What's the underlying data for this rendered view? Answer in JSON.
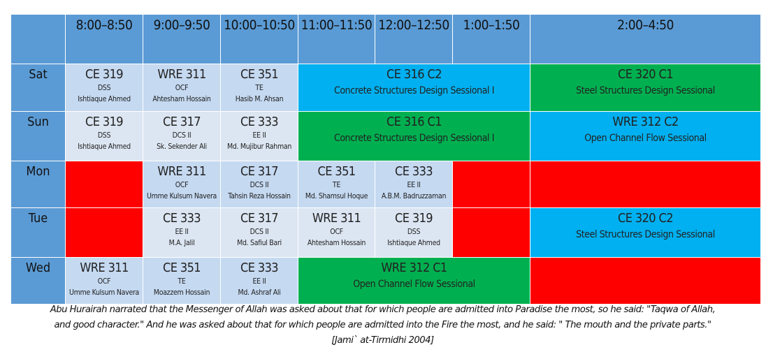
{
  "header": {
    "times": [
      "8:00–8:50",
      "9:00–9:50",
      "10:00–10:50",
      "11:00–11:50",
      "12:00–12:50",
      "1:00–1:50",
      "2:00–4:50"
    ]
  },
  "days": {
    "sat": "Sat",
    "sun": "Sun",
    "mon": "Mon",
    "tue": "Tue",
    "wed": "Wed"
  },
  "sat": {
    "c1": {
      "code": "CE 319",
      "abbr": "DSS",
      "teacher": "Ishtiaque Ahmed"
    },
    "c2": {
      "code": "WRE 311",
      "abbr": "OCF",
      "teacher": "Ahtesham Hossain"
    },
    "c3": {
      "code": "CE 351",
      "abbr": "TE",
      "teacher": "Hasib M. Ahsan"
    },
    "lab1": {
      "code": "CE 316 C2",
      "title": "Concrete Structures Design Sessional I"
    },
    "lab2": {
      "code": "CE 320 C1",
      "title": "Steel Structures Design Sessional"
    }
  },
  "sun": {
    "c1": {
      "code": "CE 319",
      "abbr": "DSS",
      "teacher": "Ishtiaque Ahmed"
    },
    "c2": {
      "code": "CE 317",
      "abbr": "DCS II",
      "teacher": "Sk. Sekender Ali"
    },
    "c3": {
      "code": "CE 333",
      "abbr": "EE II",
      "teacher": "Md. Mujibur Rahman"
    },
    "lab1": {
      "code": "CE 316 C1",
      "title": "Concrete Structures Design Sessional I"
    },
    "lab2": {
      "code": "WRE 312 C2",
      "title": "Open Channel Flow Sessional"
    }
  },
  "mon": {
    "c2": {
      "code": "WRE 311",
      "abbr": "OCF",
      "teacher": "Umme Kulsum Navera"
    },
    "c3": {
      "code": "CE 317",
      "abbr": "DCS II",
      "teacher": "Tahsin Reza Hossain"
    },
    "c4": {
      "code": "CE 351",
      "abbr": "TE",
      "teacher": "Md. Shamsul Hoque"
    },
    "c5": {
      "code": "CE 333",
      "abbr": "EE II",
      "teacher": "A.B.M. Badruzzaman"
    }
  },
  "tue": {
    "c2": {
      "code": "CE 333",
      "abbr": "EE II",
      "teacher": "M.A. Jalil"
    },
    "c3": {
      "code": "CE 317",
      "abbr": "DCS II",
      "teacher": "Md. Safiul Bari"
    },
    "c4": {
      "code": "WRE 311",
      "abbr": "OCF",
      "teacher": "Ahtesham Hossain"
    },
    "c5": {
      "code": "CE 319",
      "abbr": "DSS",
      "teacher": "Ishtiaque Ahmed"
    },
    "lab2": {
      "code": "CE 320 C2",
      "title": "Steel Structures Design Sessional"
    }
  },
  "wed": {
    "c1": {
      "code": "WRE 311",
      "abbr": "OCF",
      "teacher": "Umme Kulsum Navera"
    },
    "c2": {
      "code": "CE 351",
      "abbr": "TE",
      "teacher": "Moazzem Hossain"
    },
    "c3": {
      "code": "CE 333",
      "abbr": "EE II",
      "teacher": "Md. Ashraf Ali"
    },
    "lab1": {
      "code": "WRE 312 C1",
      "title": "Open Channel Flow Sessional"
    }
  },
  "quote": {
    "line1": "Abu Hurairah narrated that the Messenger of Allah was asked about that for which people are admitted into Paradise the most, so he said: \"Taqwa of Allah,",
    "line2": "and good character.\" And he was asked about that for which people are admitted into the Fire the most, and he said: \" The mouth and the private parts.\"",
    "line3": "[Jami` at-Tirmidhi 2004]"
  },
  "colors": {
    "header": "#5b9bd5",
    "light": "#c5d9f1",
    "pale": "#dce6f2",
    "blue": "#00b0f0",
    "green": "#00b050",
    "red": "#ff0000"
  }
}
